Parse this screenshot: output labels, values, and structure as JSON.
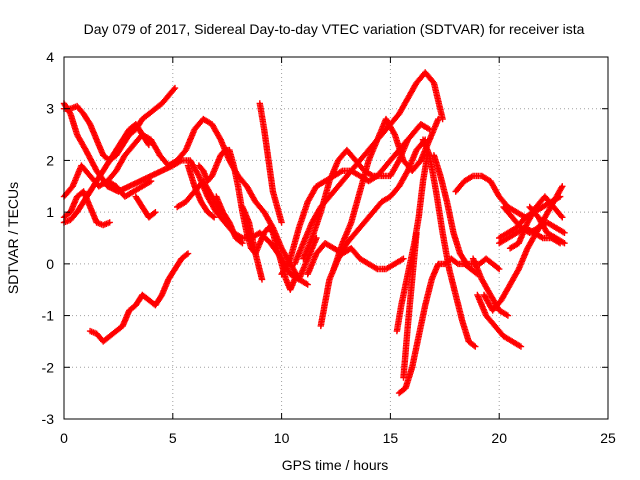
{
  "chart_data": {
    "type": "scatter",
    "title": "Day 079 of 2017, Sidereal Day-to-day VTEC variation (SDTVAR) for receiver ista",
    "xlabel": "GPS time / hours",
    "ylabel": "SDTVAR / TECUs",
    "xlim": [
      0,
      25
    ],
    "ylim": [
      -3,
      4
    ],
    "xticks": [
      "0",
      "5",
      "10",
      "15",
      "20",
      "25"
    ],
    "yticks": [
      "-3",
      "-2",
      "-1",
      "0",
      "1",
      "2",
      "3",
      "4"
    ],
    "grid": true,
    "marker": "plus",
    "color": "#ff0000",
    "series": [
      {
        "x": [
          0.0,
          0.3,
          0.6,
          1.0,
          1.5,
          2.0,
          2.5,
          3.0,
          3.5,
          4.0,
          4.5,
          5.0,
          5.4,
          5.8,
          6.2,
          6.6,
          7.0,
          7.4,
          7.8,
          8.2,
          8.6,
          9.0,
          9.5,
          10.0,
          10.4,
          10.8,
          11.2,
          11.6
        ],
        "y": [
          3.1,
          2.9,
          2.5,
          2.2,
          1.8,
          1.5,
          1.4,
          1.5,
          1.6,
          1.7,
          1.8,
          1.9,
          2.0,
          2.0,
          1.7,
          1.3,
          1.0,
          0.8,
          0.6,
          0.5,
          0.5,
          0.6,
          0.4,
          0.1,
          -0.2,
          -0.3,
          0.1,
          0.5
        ]
      },
      {
        "x": [
          0.0,
          0.4,
          0.8,
          1.2,
          1.6,
          2.0,
          2.4,
          2.8,
          3.2,
          3.6,
          4.0,
          4.4,
          4.8,
          5.2,
          5.6,
          6.0,
          6.4,
          6.8,
          7.2,
          7.6,
          8.0,
          8.4,
          8.8,
          9.2,
          9.6,
          10.0,
          10.4,
          10.8,
          11.2
        ],
        "y": [
          1.3,
          1.5,
          1.9,
          1.7,
          1.5,
          1.6,
          1.8,
          2.1,
          2.3,
          2.5,
          2.4,
          2.1,
          1.9,
          2.0,
          2.2,
          2.6,
          2.8,
          2.7,
          2.4,
          2.0,
          1.7,
          1.5,
          1.2,
          1.0,
          0.7,
          0.3,
          0.0,
          -0.3,
          -0.4
        ]
      },
      {
        "x": [
          0.0,
          0.3,
          0.6,
          0.9,
          1.2,
          1.5,
          1.8,
          2.1,
          2.4,
          2.7,
          3.0,
          3.3,
          3.6,
          3.9,
          4.2,
          4.5,
          4.8,
          5.1
        ],
        "y": [
          3.0,
          3.0,
          3.05,
          2.9,
          2.7,
          2.4,
          2.1,
          2.0,
          2.1,
          2.3,
          2.5,
          2.6,
          2.8,
          2.9,
          3.0,
          3.1,
          3.25,
          3.4
        ]
      },
      {
        "x": [
          0.0,
          0.3,
          0.6,
          0.9,
          1.2,
          1.5,
          1.8,
          2.1,
          2.4,
          2.7,
          3.0,
          3.3,
          3.6,
          3.9
        ],
        "y": [
          0.8,
          0.85,
          1.0,
          1.2,
          1.4,
          1.6,
          1.8,
          2.0,
          2.2,
          2.4,
          2.6,
          2.7,
          2.5,
          2.3
        ]
      },
      {
        "x": [
          0.0,
          0.3,
          0.6,
          0.9,
          1.2,
          1.5,
          1.8,
          2.1
        ],
        "y": [
          0.9,
          1.0,
          1.3,
          1.4,
          1.1,
          0.8,
          0.75,
          0.8
        ]
      },
      {
        "x": [
          1.2,
          1.5,
          1.8,
          2.1,
          2.4,
          2.7,
          3.0,
          3.3,
          3.6,
          3.9,
          4.2,
          4.5,
          4.8,
          5.1,
          5.4,
          5.7
        ],
        "y": [
          -1.3,
          -1.35,
          -1.5,
          -1.4,
          -1.3,
          -1.2,
          -0.9,
          -0.8,
          -0.6,
          -0.7,
          -0.8,
          -0.6,
          -0.3,
          -0.1,
          0.1,
          0.2
        ]
      },
      {
        "x": [
          2.0,
          2.4,
          2.8,
          3.2,
          3.6,
          4.0
        ],
        "y": [
          1.6,
          1.5,
          1.3,
          1.4,
          1.5,
          1.6
        ]
      },
      {
        "x": [
          3.3,
          3.6,
          3.9,
          4.2
        ],
        "y": [
          1.3,
          1.1,
          0.9,
          1.0
        ]
      },
      {
        "x": [
          6.2,
          6.4,
          6.6,
          6.8,
          7.0,
          7.2,
          7.4,
          7.6,
          7.8,
          8.0,
          8.2,
          8.4,
          8.6,
          8.8,
          9.0,
          9.2,
          9.4,
          9.6,
          9.8,
          10.0,
          10.2,
          10.4,
          10.6
        ],
        "y": [
          1.9,
          1.8,
          1.6,
          1.7,
          1.9,
          2.1,
          2.2,
          2.2,
          1.9,
          1.5,
          1.0,
          0.6,
          0.3,
          0.2,
          0.4,
          0.6,
          0.7,
          0.6,
          0.3,
          0.0,
          -0.3,
          -0.5,
          -0.3
        ]
      },
      {
        "x": [
          7.0,
          7.3,
          7.6,
          7.9,
          8.2
        ],
        "y": [
          1.3,
          1.0,
          0.8,
          0.5,
          0.4
        ]
      },
      {
        "x": [
          5.2,
          5.6,
          6.0,
          6.4,
          6.8,
          7.2
        ],
        "y": [
          1.1,
          1.2,
          1.4,
          1.6,
          1.3,
          1.0
        ]
      },
      {
        "x": [
          5.7,
          6.0,
          6.3,
          6.6,
          6.9
        ],
        "y": [
          1.9,
          1.5,
          1.2,
          1.0,
          0.9
        ]
      },
      {
        "x": [
          8.2,
          8.5,
          8.8,
          9.1
        ],
        "y": [
          1.1,
          0.8,
          0.2,
          -0.3
        ]
      },
      {
        "x": [
          9.0,
          9.2,
          9.4,
          9.6,
          9.8,
          10.0
        ],
        "y": [
          3.1,
          2.6,
          2.0,
          1.4,
          1.1,
          0.8
        ]
      },
      {
        "x": [
          10.0,
          10.4,
          10.8,
          11.2,
          11.6,
          12.0,
          12.4,
          12.8,
          13.2,
          13.6,
          14.0,
          14.4,
          14.8,
          15.2,
          15.6,
          16.0,
          16.4,
          16.8
        ],
        "y": [
          -0.2,
          0.1,
          0.7,
          1.2,
          1.5,
          1.6,
          1.7,
          1.8,
          1.8,
          1.7,
          1.6,
          1.7,
          1.9,
          2.1,
          2.3,
          2.5,
          2.7,
          2.6
        ]
      },
      {
        "x": [
          10.6,
          11.0,
          11.4,
          11.8,
          12.2,
          12.6,
          13.0,
          13.4,
          13.8,
          14.2,
          14.6,
          15.0,
          15.4,
          15.8,
          16.2,
          16.6,
          17.0,
          17.4
        ],
        "y": [
          0.0,
          0.4,
          0.8,
          1.1,
          1.3,
          1.5,
          1.7,
          1.9,
          2.1,
          2.3,
          2.5,
          2.7,
          2.9,
          3.2,
          3.5,
          3.7,
          3.5,
          2.8
        ]
      },
      {
        "x": [
          11.0,
          11.4,
          11.8,
          12.2,
          12.6,
          13.0,
          13.4,
          13.8,
          14.2,
          14.6,
          15.0,
          15.4,
          15.8
        ],
        "y": [
          0.1,
          0.5,
          1.0,
          1.6,
          2.0,
          2.2,
          2.0,
          1.8,
          1.7,
          1.7,
          1.7,
          2.0,
          2.4
        ]
      },
      {
        "x": [
          11.2,
          11.6,
          12.0,
          12.4,
          12.8,
          13.2,
          13.6,
          14.0,
          14.4,
          14.8,
          15.2,
          15.6
        ],
        "y": [
          -0.2,
          0.2,
          0.4,
          0.3,
          0.2,
          0.3,
          0.1,
          0.0,
          -0.1,
          -0.1,
          0.0,
          0.1
        ]
      },
      {
        "x": [
          11.8,
          12.2,
          12.6,
          13.0,
          13.4,
          13.8,
          14.2,
          14.6,
          15.0,
          15.4,
          15.8,
          16.2,
          16.6
        ],
        "y": [
          -1.2,
          -0.3,
          0.1,
          0.4,
          0.6,
          0.8,
          1.0,
          1.2,
          1.3,
          1.5,
          1.8,
          2.2,
          2.4
        ]
      },
      {
        "x": [
          12.4,
          12.8,
          13.2,
          13.6,
          14.0,
          14.4,
          14.8,
          15.2,
          15.6,
          16.0,
          16.4,
          16.8,
          17.2
        ],
        "y": [
          -0.1,
          0.4,
          0.8,
          1.4,
          2.0,
          2.4,
          2.8,
          2.5,
          2.0,
          1.8,
          2.0,
          2.4,
          2.8
        ]
      },
      {
        "x": [
          15.3,
          15.5,
          15.7,
          15.9,
          16.1,
          16.3,
          16.5,
          16.7
        ],
        "y": [
          -1.3,
          -0.8,
          -0.4,
          0.0,
          0.4,
          0.9,
          1.6,
          2.1
        ]
      },
      {
        "x": [
          15.4,
          15.7,
          16.0,
          16.3,
          16.6,
          16.9,
          17.2,
          17.5,
          17.8,
          18.1,
          18.4,
          18.7,
          19.0
        ],
        "y": [
          -2.5,
          -2.4,
          -2.0,
          -1.4,
          -0.8,
          -0.3,
          0.0,
          0.0,
          0.1,
          0.0,
          0.0,
          -0.1,
          -0.2
        ]
      },
      {
        "x": [
          15.6,
          15.8,
          16.0,
          16.2
        ],
        "y": [
          -2.2,
          -1.2,
          -0.3,
          0.6
        ]
      },
      {
        "x": [
          16.5,
          16.8,
          17.1,
          17.4,
          17.7,
          18.0,
          18.3,
          18.6,
          18.9
        ],
        "y": [
          2.4,
          2.1,
          1.4,
          0.6,
          -0.1,
          -0.6,
          -1.1,
          -1.5,
          -1.6
        ]
      },
      {
        "x": [
          17.0,
          17.3,
          17.6,
          17.9,
          18.2,
          18.5,
          18.8,
          19.1,
          19.4,
          19.7,
          20.0
        ],
        "y": [
          2.1,
          1.7,
          1.2,
          0.6,
          0.2,
          0.0,
          0.0,
          0.0,
          0.1,
          0.0,
          -0.1
        ]
      },
      {
        "x": [
          18.0,
          18.4,
          18.8,
          19.2,
          19.6,
          20.0,
          20.4,
          20.8,
          21.2
        ],
        "y": [
          1.4,
          1.6,
          1.7,
          1.7,
          1.6,
          1.3,
          1.1,
          1.0,
          0.9
        ]
      },
      {
        "x": [
          19.0,
          19.4,
          19.8,
          20.2,
          20.6,
          21.0
        ],
        "y": [
          -0.6,
          -1.0,
          -1.2,
          -1.4,
          -1.5,
          -1.6
        ]
      },
      {
        "x": [
          18.8,
          19.2,
          19.6,
          20.0,
          20.4
        ],
        "y": [
          0.1,
          -0.3,
          -0.6,
          -0.9,
          -1.0
        ]
      },
      {
        "x": [
          19.3,
          19.7,
          20.1,
          20.5,
          20.9,
          21.3,
          21.7,
          22.1,
          22.5,
          22.9
        ],
        "y": [
          -0.6,
          -0.9,
          -0.7,
          -0.4,
          -0.1,
          0.3,
          0.6,
          0.9,
          1.2,
          1.5
        ]
      },
      {
        "x": [
          20.0,
          20.4,
          20.8,
          21.2,
          21.6,
          22.0,
          22.4,
          22.8
        ],
        "y": [
          0.5,
          0.6,
          0.7,
          0.9,
          1.0,
          1.1,
          1.2,
          1.3
        ]
      },
      {
        "x": [
          20.0,
          20.4,
          20.8,
          21.2,
          21.6,
          22.0,
          22.4,
          22.8
        ],
        "y": [
          0.4,
          0.5,
          0.6,
          0.7,
          0.6,
          0.5,
          0.5,
          0.4
        ]
      },
      {
        "x": [
          20.2,
          20.6,
          21.0,
          21.4,
          21.8,
          22.2,
          22.6,
          23.0
        ],
        "y": [
          1.1,
          0.9,
          0.7,
          0.6,
          0.7,
          0.8,
          0.7,
          0.6
        ]
      },
      {
        "x": [
          20.5,
          20.9,
          21.3,
          21.7,
          22.1,
          22.5,
          22.9
        ],
        "y": [
          0.3,
          0.4,
          0.8,
          1.1,
          1.3,
          1.1,
          0.9
        ]
      },
      {
        "x": [
          21.4,
          21.8,
          22.2,
          22.6,
          23.0
        ],
        "y": [
          1.1,
          0.9,
          0.6,
          0.5,
          0.4
        ]
      }
    ]
  }
}
